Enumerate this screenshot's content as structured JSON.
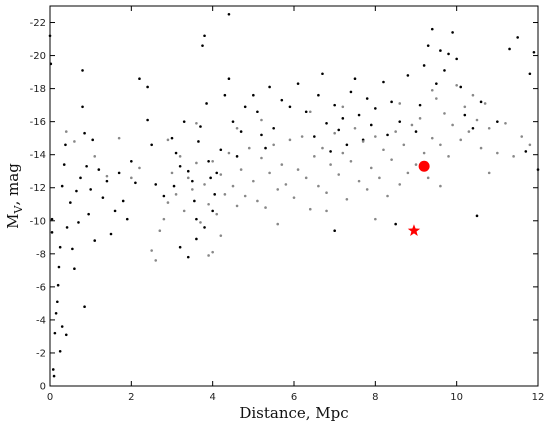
{
  "chart_data": {
    "type": "scatter",
    "xlabel": "Distance, Mpc",
    "ylabel_main": "M",
    "ylabel_sub": "V",
    "ylabel_unit": ", mag",
    "xlim": [
      0,
      12
    ],
    "ylim": [
      0,
      -23
    ],
    "y_axis_inverted": true,
    "grid": false,
    "x_ticks": [
      0,
      2,
      4,
      6,
      8,
      10,
      12
    ],
    "x_tick_labels": [
      "0",
      "2",
      "4",
      "6",
      "8",
      "10",
      "12"
    ],
    "y_ticks": [
      0,
      -2,
      -4,
      -6,
      -8,
      -10,
      -12,
      -14,
      -16,
      -18,
      -20,
      -22
    ],
    "y_tick_labels": [
      "0",
      "-2",
      "-4",
      "-6",
      "-8",
      "-10",
      "-12",
      "-14",
      "-16",
      "-18",
      "-20",
      "-22"
    ],
    "series": [
      {
        "color": "#000000",
        "points": [
          [
            0.0,
            -21.2
          ],
          [
            0.02,
            -19.5
          ],
          [
            0.05,
            -10.1
          ],
          [
            0.05,
            -9.3
          ],
          [
            0.08,
            -1.0
          ],
          [
            0.1,
            -0.6
          ],
          [
            0.12,
            -3.2
          ],
          [
            0.15,
            -4.4
          ],
          [
            0.18,
            -5.1
          ],
          [
            0.2,
            -6.1
          ],
          [
            0.22,
            -7.2
          ],
          [
            0.25,
            -8.4
          ],
          [
            0.25,
            -2.1
          ],
          [
            0.3,
            -3.6
          ],
          [
            0.3,
            -12.1
          ],
          [
            0.35,
            -13.4
          ],
          [
            0.38,
            -14.6
          ],
          [
            0.4,
            -3.1
          ],
          [
            0.42,
            -9.6
          ],
          [
            0.5,
            -11.1
          ],
          [
            0.55,
            -8.3
          ],
          [
            0.6,
            -7.1
          ],
          [
            0.65,
            -11.8
          ],
          [
            0.7,
            -9.9
          ],
          [
            0.75,
            -12.6
          ],
          [
            0.8,
            -16.9
          ],
          [
            0.8,
            -19.1
          ],
          [
            0.85,
            -4.8
          ],
          [
            0.85,
            -15.3
          ],
          [
            0.9,
            -13.3
          ],
          [
            0.95,
            -10.4
          ],
          [
            1.0,
            -11.9
          ],
          [
            1.05,
            -14.9
          ],
          [
            1.1,
            -8.8
          ],
          [
            1.2,
            -13.1
          ],
          [
            1.3,
            -11.4
          ],
          [
            1.4,
            -12.4
          ],
          [
            1.5,
            -9.2
          ],
          [
            1.6,
            -10.6
          ],
          [
            1.7,
            -12.9
          ],
          [
            1.8,
            -11.2
          ],
          [
            1.9,
            -10.1
          ],
          [
            2.0,
            -13.6
          ],
          [
            2.1,
            -12.3
          ],
          [
            2.2,
            -18.6
          ],
          [
            2.4,
            -16.1
          ],
          [
            2.5,
            -14.6
          ],
          [
            2.6,
            -12.2
          ],
          [
            2.8,
            -11.5
          ],
          [
            3.0,
            -15.0
          ],
          [
            3.05,
            -12.1
          ],
          [
            3.1,
            -14.1
          ],
          [
            3.2,
            -13.3
          ],
          [
            3.3,
            -16.0
          ],
          [
            3.4,
            -13.0
          ],
          [
            3.5,
            -12.4
          ],
          [
            3.55,
            -11.2
          ],
          [
            3.6,
            -10.1
          ],
          [
            3.65,
            -14.8
          ],
          [
            3.7,
            -15.7
          ],
          [
            3.75,
            -20.6
          ],
          [
            3.8,
            -21.2
          ],
          [
            3.85,
            -17.1
          ],
          [
            3.9,
            -13.6
          ],
          [
            3.95,
            -12.6
          ],
          [
            4.0,
            -10.6
          ],
          [
            4.05,
            -11.6
          ],
          [
            4.1,
            -12.9
          ],
          [
            4.2,
            -14.3
          ],
          [
            4.3,
            -17.6
          ],
          [
            4.4,
            -18.6
          ],
          [
            4.5,
            -16.0
          ],
          [
            4.6,
            -13.9
          ],
          [
            4.7,
            -15.4
          ],
          [
            4.8,
            -16.9
          ],
          [
            5.0,
            -17.6
          ],
          [
            5.1,
            -16.6
          ],
          [
            5.2,
            -15.2
          ],
          [
            5.3,
            -14.4
          ],
          [
            5.4,
            -18.1
          ],
          [
            5.5,
            -15.6
          ],
          [
            5.7,
            -17.3
          ],
          [
            5.9,
            -16.9
          ],
          [
            6.1,
            -18.3
          ],
          [
            6.3,
            -16.6
          ],
          [
            6.5,
            -15.1
          ],
          [
            6.6,
            -17.6
          ],
          [
            6.7,
            -18.9
          ],
          [
            6.8,
            -15.9
          ],
          [
            6.9,
            -14.2
          ],
          [
            7.0,
            -17.0
          ],
          [
            7.1,
            -15.5
          ],
          [
            7.2,
            -16.2
          ],
          [
            7.3,
            -14.6
          ],
          [
            7.4,
            -17.8
          ],
          [
            7.5,
            -18.6
          ],
          [
            7.6,
            -16.4
          ],
          [
            7.7,
            -14.9
          ],
          [
            7.8,
            -17.4
          ],
          [
            7.9,
            -15.8
          ],
          [
            8.0,
            -16.8
          ],
          [
            8.2,
            -18.4
          ],
          [
            8.3,
            -15.2
          ],
          [
            8.4,
            -17.2
          ],
          [
            8.6,
            -16.0
          ],
          [
            8.8,
            -18.8
          ],
          [
            9.0,
            -15.4
          ],
          [
            9.1,
            -17.0
          ],
          [
            9.2,
            -19.4
          ],
          [
            9.3,
            -20.6
          ],
          [
            9.4,
            -21.6
          ],
          [
            9.5,
            -18.3
          ],
          [
            9.6,
            -20.3
          ],
          [
            9.7,
            -19.1
          ],
          [
            9.8,
            -20.1
          ],
          [
            9.9,
            -21.4
          ],
          [
            10.0,
            -19.8
          ],
          [
            10.1,
            -18.1
          ],
          [
            10.2,
            -16.4
          ],
          [
            10.4,
            -15.6
          ],
          [
            10.6,
            -17.2
          ],
          [
            11.0,
            -16.0
          ],
          [
            11.3,
            -20.4
          ],
          [
            11.5,
            -21.1
          ],
          [
            11.7,
            -14.2
          ],
          [
            11.8,
            -18.9
          ],
          [
            11.9,
            -20.2
          ],
          [
            12.0,
            -13.1
          ],
          [
            3.2,
            -8.4
          ],
          [
            3.4,
            -7.8
          ],
          [
            3.6,
            -8.9
          ],
          [
            3.8,
            -9.6
          ],
          [
            2.4,
            -18.1
          ],
          [
            4.4,
            -22.5
          ],
          [
            7.0,
            -9.4
          ],
          [
            8.5,
            -9.8
          ],
          [
            10.5,
            -10.3
          ]
        ]
      },
      {
        "color": "#888888",
        "points": [
          [
            0.4,
            -15.4
          ],
          [
            0.6,
            -14.8
          ],
          [
            1.1,
            -13.9
          ],
          [
            1.4,
            -12.7
          ],
          [
            1.7,
            -15.0
          ],
          [
            2.0,
            -12.6
          ],
          [
            2.2,
            -13.2
          ],
          [
            2.5,
            -8.2
          ],
          [
            2.6,
            -7.6
          ],
          [
            2.7,
            -9.4
          ],
          [
            2.8,
            -10.1
          ],
          [
            2.9,
            -11.1
          ],
          [
            3.0,
            -12.9
          ],
          [
            3.1,
            -11.6
          ],
          [
            3.2,
            -13.9
          ],
          [
            3.3,
            -10.6
          ],
          [
            3.4,
            -12.6
          ],
          [
            3.5,
            -11.9
          ],
          [
            3.6,
            -13.5
          ],
          [
            3.7,
            -9.9
          ],
          [
            3.8,
            -12.2
          ],
          [
            3.9,
            -11.0
          ],
          [
            4.0,
            -13.6
          ],
          [
            4.1,
            -10.4
          ],
          [
            4.2,
            -12.8
          ],
          [
            4.3,
            -11.6
          ],
          [
            4.4,
            -14.1
          ],
          [
            4.5,
            -12.1
          ],
          [
            4.6,
            -10.9
          ],
          [
            4.7,
            -13.1
          ],
          [
            4.8,
            -11.5
          ],
          [
            4.9,
            -14.4
          ],
          [
            5.0,
            -12.4
          ],
          [
            5.1,
            -11.2
          ],
          [
            5.2,
            -13.8
          ],
          [
            5.3,
            -10.8
          ],
          [
            5.4,
            -12.9
          ],
          [
            5.5,
            -14.6
          ],
          [
            5.6,
            -11.9
          ],
          [
            5.7,
            -13.4
          ],
          [
            5.8,
            -12.2
          ],
          [
            5.9,
            -14.9
          ],
          [
            6.0,
            -11.4
          ],
          [
            6.1,
            -13.1
          ],
          [
            6.2,
            -15.1
          ],
          [
            6.3,
            -12.6
          ],
          [
            6.4,
            -10.7
          ],
          [
            6.5,
            -13.9
          ],
          [
            6.6,
            -12.1
          ],
          [
            6.7,
            -14.4
          ],
          [
            6.8,
            -11.7
          ],
          [
            6.9,
            -13.4
          ],
          [
            7.0,
            -15.3
          ],
          [
            7.1,
            -12.8
          ],
          [
            7.2,
            -14.1
          ],
          [
            7.3,
            -11.3
          ],
          [
            7.4,
            -13.6
          ],
          [
            7.5,
            -15.6
          ],
          [
            7.6,
            -12.4
          ],
          [
            7.7,
            -14.8
          ],
          [
            7.8,
            -11.9
          ],
          [
            7.9,
            -13.2
          ],
          [
            8.0,
            -15.1
          ],
          [
            8.1,
            -12.6
          ],
          [
            8.2,
            -14.3
          ],
          [
            8.3,
            -11.5
          ],
          [
            8.4,
            -13.7
          ],
          [
            8.5,
            -15.4
          ],
          [
            8.6,
            -12.2
          ],
          [
            8.7,
            -14.6
          ],
          [
            8.8,
            -12.9
          ],
          [
            8.9,
            -15.8
          ],
          [
            9.0,
            -13.4
          ],
          [
            9.1,
            -16.2
          ],
          [
            9.2,
            -14.1
          ],
          [
            9.3,
            -12.6
          ],
          [
            9.4,
            -15.0
          ],
          [
            9.5,
            -17.4
          ],
          [
            9.6,
            -14.6
          ],
          [
            9.7,
            -16.5
          ],
          [
            9.8,
            -13.9
          ],
          [
            9.9,
            -15.8
          ],
          [
            10.0,
            -18.2
          ],
          [
            10.1,
            -14.9
          ],
          [
            10.2,
            -16.9
          ],
          [
            10.3,
            -15.4
          ],
          [
            10.4,
            -17.6
          ],
          [
            10.5,
            -16.1
          ],
          [
            10.6,
            -14.4
          ],
          [
            10.7,
            -17.1
          ],
          [
            10.8,
            -15.6
          ],
          [
            11.0,
            -14.1
          ],
          [
            11.2,
            -15.9
          ],
          [
            11.4,
            -13.9
          ],
          [
            11.6,
            -15.1
          ],
          [
            11.8,
            -14.6
          ],
          [
            4.0,
            -8.1
          ],
          [
            4.2,
            -9.1
          ],
          [
            3.9,
            -7.9
          ],
          [
            5.6,
            -9.8
          ],
          [
            6.8,
            -10.6
          ],
          [
            8.0,
            -10.1
          ],
          [
            9.6,
            -12.1
          ],
          [
            10.8,
            -12.9
          ],
          [
            4.6,
            -15.6
          ],
          [
            5.2,
            -16.1
          ],
          [
            6.4,
            -16.6
          ],
          [
            7.2,
            -16.9
          ],
          [
            8.6,
            -17.1
          ],
          [
            3.6,
            -15.9
          ],
          [
            2.9,
            -14.9
          ],
          [
            9.4,
            -17.9
          ]
        ]
      },
      {
        "marker": "circle",
        "color": "#ff0000",
        "points": [
          [
            9.2,
            -13.3
          ]
        ]
      },
      {
        "marker": "star",
        "color": "#ff0000",
        "points": [
          [
            8.95,
            -9.4
          ]
        ]
      }
    ]
  }
}
